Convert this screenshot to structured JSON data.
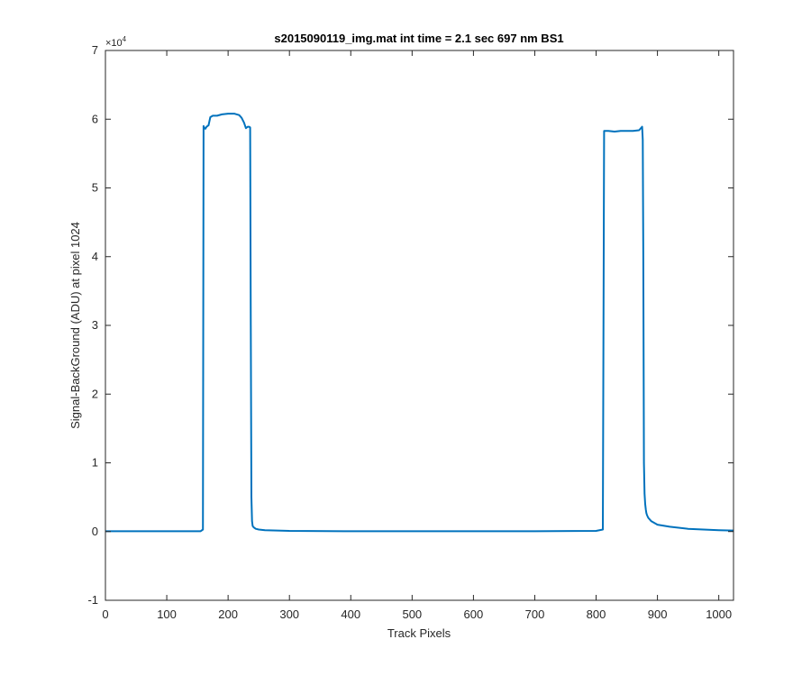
{
  "chart_data": {
    "type": "line",
    "title": "s2015090119_img.mat int time = 2.1 sec  697 nm BS1",
    "xlabel": "Track Pixels",
    "ylabel": "Signal-BackGround (ADU) at pixel 1024",
    "xlim": [
      0,
      1024
    ],
    "ylim": [
      -10000,
      70000
    ],
    "xticks": [
      0,
      100,
      200,
      300,
      400,
      500,
      600,
      700,
      800,
      900,
      1000
    ],
    "yticks": [
      -1,
      0,
      1,
      2,
      3,
      4,
      5,
      6,
      7
    ],
    "y_multiplier": "×10",
    "y_multiplier_exponent": "4",
    "line_color": "#0072BD",
    "grid": false,
    "series": [
      {
        "x": [
          0,
          100,
          155,
          159,
          160,
          161,
          163,
          165,
          168,
          171,
          175,
          182,
          190,
          200,
          210,
          218,
          222,
          226,
          229,
          232,
          233,
          234,
          236,
          237,
          238,
          239,
          240,
          242,
          245,
          250,
          260,
          300,
          400,
          500,
          600,
          700,
          800,
          811,
          813,
          814,
          815,
          820,
          830,
          840,
          850,
          860,
          870,
          875,
          876,
          877,
          878,
          879,
          880,
          881,
          882,
          883,
          885,
          890,
          900,
          920,
          950,
          1000,
          1024
        ],
        "y": [
          50,
          50,
          50,
          300,
          59000,
          58800,
          58600,
          58900,
          59100,
          60300,
          60500,
          60500,
          60700,
          60800,
          60800,
          60600,
          60200,
          59500,
          58700,
          58900,
          58900,
          58900,
          58800,
          30000,
          5000,
          1500,
          800,
          600,
          400,
          300,
          200,
          100,
          50,
          50,
          50,
          50,
          100,
          300,
          58300,
          58300,
          58300,
          58300,
          58200,
          58300,
          58300,
          58300,
          58400,
          58900,
          57000,
          40000,
          10000,
          5500,
          4000,
          3200,
          2700,
          2400,
          2000,
          1500,
          1000,
          700,
          400,
          200,
          150
        ]
      }
    ]
  }
}
